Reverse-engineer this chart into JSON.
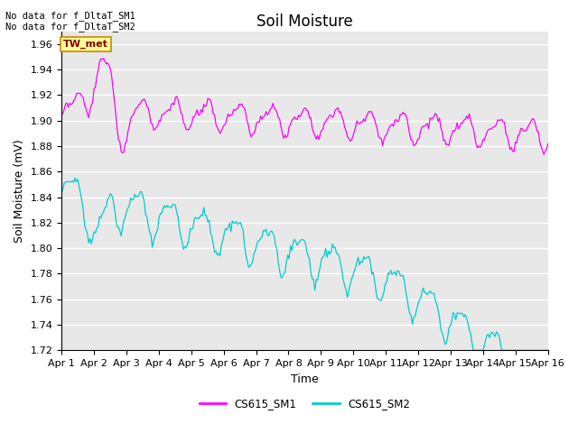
{
  "title": "Soil Moisture",
  "xlabel": "Time",
  "ylabel": "Soil Moisture (mV)",
  "ylim": [
    1.72,
    1.97
  ],
  "x_labels": [
    "Apr 1",
    "Apr 2",
    "Apr 3",
    "Apr 4",
    "Apr 5",
    "Apr 6",
    "Apr 7",
    "Apr 8",
    "Apr 9",
    "Apr 10",
    "Apr 11",
    "Apr 12",
    "Apr 13",
    "Apr 14",
    "Apr 15",
    "Apr 16"
  ],
  "color_sm1": "#FF00FF",
  "color_sm2": "#00CCCC",
  "annotation_text": "No data for f_DltaT_SM1\nNo data for f_DltaT_SM2",
  "tw_met_color": "#FFFF99",
  "tw_met_text": "TW_met",
  "tw_met_text_color": "#8B0000",
  "tw_met_edge_color": "#CC8800",
  "background_color": "#E8E8E8",
  "legend_label1": "CS615_SM1",
  "legend_label2": "CS615_SM2",
  "title_fontsize": 12,
  "axis_label_fontsize": 9,
  "tick_fontsize": 8
}
